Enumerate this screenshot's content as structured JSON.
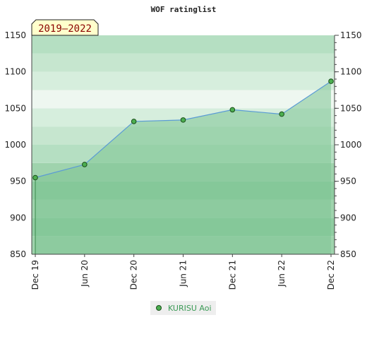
{
  "chart_data": {
    "type": "area",
    "title": "WOF ratinglist",
    "badge": "2019–2022",
    "x_ticks": [
      "Dec 19",
      "Jun 20",
      "Dec 20",
      "Jun 21",
      "Dec 21",
      "Jun 22",
      "Dec 22"
    ],
    "y_ticks": [
      850,
      900,
      950,
      1000,
      1050,
      1100,
      1150
    ],
    "ylim": [
      850,
      1150
    ],
    "series": [
      {
        "name": "KURISU Aoi",
        "x": [
          "Dec 19",
          "Jun 20",
          "Dec 20",
          "Jun 21",
          "Dec 21",
          "Jun 22",
          "Dec 22"
        ],
        "values": [
          955,
          973,
          1032,
          1034,
          1048,
          1042,
          1087
        ]
      }
    ],
    "legend_position": "bottom-center",
    "colors": {
      "line": "#5b9bd5",
      "marker": "#4caf50",
      "fill": "#7dc494"
    }
  }
}
